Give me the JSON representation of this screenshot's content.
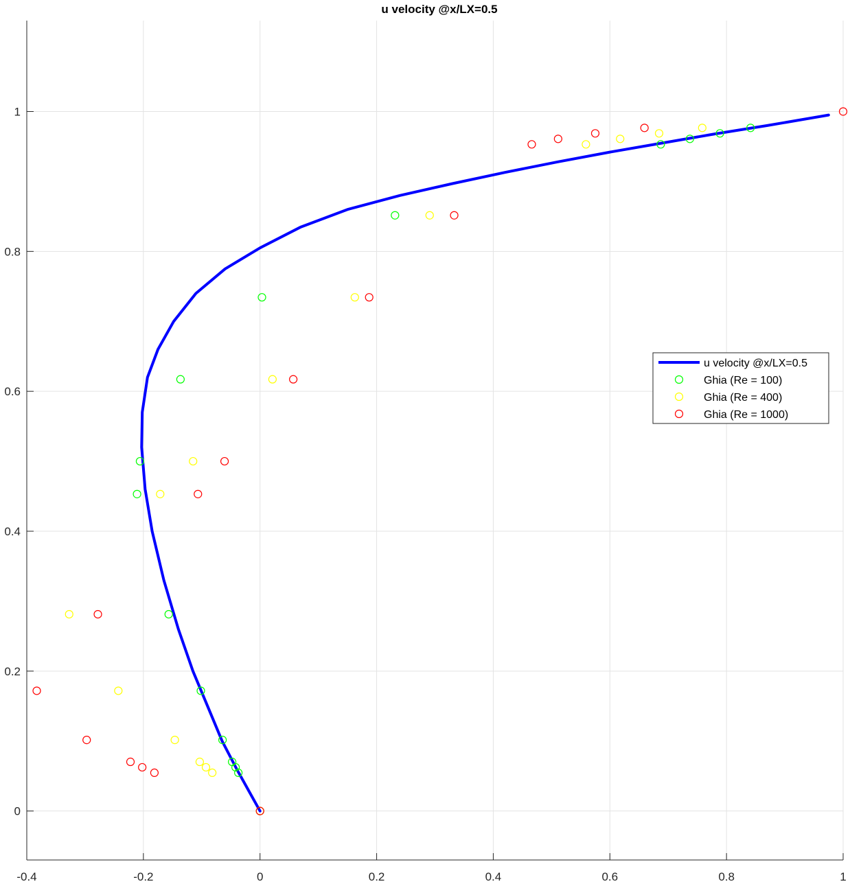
{
  "chart_data": {
    "type": "scatter",
    "title": "u velocity @x/LX=0.5",
    "xlabel": "",
    "ylabel": "",
    "xlim": [
      -0.4,
      1
    ],
    "ylim": [
      -0.07,
      1.13
    ],
    "xticks": [
      -0.4,
      -0.2,
      0,
      0.2,
      0.4,
      0.6,
      0.8,
      1
    ],
    "yticks": [
      0,
      0.2,
      0.4,
      0.6,
      0.8,
      1
    ],
    "xtick_labels": [
      "-0.4",
      "-0.2",
      "0",
      "0.2",
      "0.4",
      "0.6",
      "0.8",
      "1"
    ],
    "ytick_labels": [
      "0",
      "0.2",
      "0.4",
      "0.6",
      "0.8",
      "1"
    ],
    "grid": true,
    "legend_position": "right",
    "series": [
      {
        "name": "u velocity @x/LX=0.5",
        "kind": "line",
        "color": "#0000ff",
        "points": [
          [
            0,
            0
          ],
          [
            -0.02,
            0.03
          ],
          [
            -0.04,
            0.06
          ],
          [
            -0.065,
            0.1
          ],
          [
            -0.09,
            0.15
          ],
          [
            -0.115,
            0.2
          ],
          [
            -0.14,
            0.26
          ],
          [
            -0.165,
            0.33
          ],
          [
            -0.185,
            0.4
          ],
          [
            -0.197,
            0.46
          ],
          [
            -0.203,
            0.52
          ],
          [
            -0.202,
            0.57
          ],
          [
            -0.193,
            0.62
          ],
          [
            -0.175,
            0.66
          ],
          [
            -0.148,
            0.7
          ],
          [
            -0.11,
            0.74
          ],
          [
            -0.06,
            0.775
          ],
          [
            0.0,
            0.805
          ],
          [
            0.07,
            0.835
          ],
          [
            0.15,
            0.86
          ],
          [
            0.24,
            0.88
          ],
          [
            0.33,
            0.897
          ],
          [
            0.42,
            0.913
          ],
          [
            0.51,
            0.928
          ],
          [
            0.6,
            0.942
          ],
          [
            0.69,
            0.955
          ],
          [
            0.78,
            0.968
          ],
          [
            0.87,
            0.98
          ],
          [
            0.975,
            0.995
          ]
        ]
      },
      {
        "name": "Ghia (Re = 100)",
        "kind": "marker",
        "color": "#00ff00",
        "points": [
          [
            0,
            0
          ],
          [
            -0.0372,
            0.0547
          ],
          [
            -0.0419,
            0.0625
          ],
          [
            -0.0478,
            0.0703
          ],
          [
            -0.0643,
            0.1016
          ],
          [
            -0.1015,
            0.1719
          ],
          [
            -0.1566,
            0.2813
          ],
          [
            -0.2109,
            0.4531
          ],
          [
            -0.2058,
            0.5
          ],
          [
            -0.1364,
            0.6172
          ],
          [
            0.0033,
            0.7344
          ],
          [
            0.2315,
            0.8516
          ],
          [
            0.6872,
            0.9531
          ],
          [
            0.7372,
            0.9609
          ],
          [
            0.7887,
            0.9688
          ],
          [
            0.8412,
            0.9766
          ]
        ]
      },
      {
        "name": "Ghia (Re = 400)",
        "kind": "marker",
        "color": "#ffff00",
        "points": [
          [
            0,
            0
          ],
          [
            -0.0819,
            0.0547
          ],
          [
            -0.0927,
            0.0625
          ],
          [
            -0.1034,
            0.0703
          ],
          [
            -0.1461,
            0.1016
          ],
          [
            -0.243,
            0.1719
          ],
          [
            -0.3273,
            0.2813
          ],
          [
            -0.1712,
            0.4531
          ],
          [
            -0.1148,
            0.5
          ],
          [
            0.0214,
            0.6172
          ],
          [
            0.1626,
            0.7344
          ],
          [
            0.2909,
            0.8516
          ],
          [
            0.5589,
            0.9531
          ],
          [
            0.6176,
            0.9609
          ],
          [
            0.6844,
            0.9688
          ],
          [
            0.7584,
            0.9766
          ]
        ]
      },
      {
        "name": "Ghia (Re = 1000)",
        "kind": "marker",
        "color": "#ff0000",
        "points": [
          [
            0,
            0
          ],
          [
            -0.1811,
            0.0547
          ],
          [
            -0.202,
            0.0625
          ],
          [
            -0.2222,
            0.0703
          ],
          [
            -0.2973,
            0.1016
          ],
          [
            -0.3829,
            0.1719
          ],
          [
            -0.2781,
            0.2813
          ],
          [
            -0.1065,
            0.4531
          ],
          [
            -0.0608,
            0.5
          ],
          [
            0.057,
            0.6172
          ],
          [
            0.1872,
            0.7344
          ],
          [
            0.333,
            0.8516
          ],
          [
            0.466,
            0.9531
          ],
          [
            0.5112,
            0.9609
          ],
          [
            0.5749,
            0.9688
          ],
          [
            0.6593,
            0.9766
          ],
          [
            1,
            1
          ]
        ]
      }
    ]
  }
}
